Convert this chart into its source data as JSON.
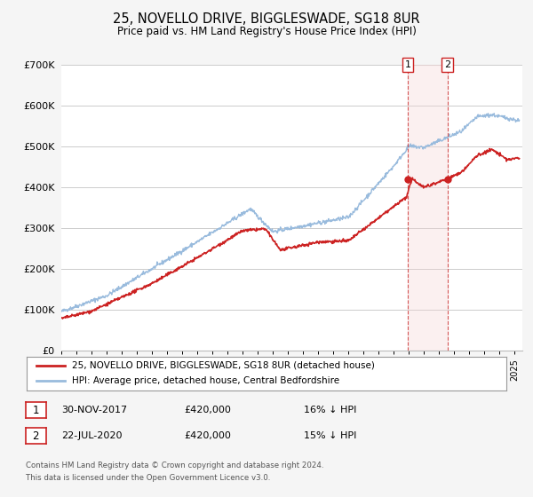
{
  "title": "25, NOVELLO DRIVE, BIGGLESWADE, SG18 8UR",
  "subtitle": "Price paid vs. HM Land Registry's House Price Index (HPI)",
  "ylim": [
    0,
    700000
  ],
  "xlim_start": 1995.0,
  "xlim_end": 2025.5,
  "yticks": [
    0,
    100000,
    200000,
    300000,
    400000,
    500000,
    600000,
    700000
  ],
  "ytick_labels": [
    "£0",
    "£100K",
    "£200K",
    "£300K",
    "£400K",
    "£500K",
    "£600K",
    "£700K"
  ],
  "background_color": "#f5f5f5",
  "plot_bg_color": "#ffffff",
  "grid_color": "#cccccc",
  "red_line_color": "#cc2222",
  "blue_line_color": "#99bbdd",
  "marker1_x": 2017.917,
  "marker1_y": 420000,
  "marker2_x": 2020.55,
  "marker2_y": 420000,
  "vline1_x": 2017.917,
  "vline2_x": 2020.55,
  "vline_color": "#cc3333",
  "vline_shade_color": "#f5d5d5",
  "legend_label_red": "25, NOVELLO DRIVE, BIGGLESWADE, SG18 8UR (detached house)",
  "legend_label_blue": "HPI: Average price, detached house, Central Bedfordshire",
  "annotation1_date": "30-NOV-2017",
  "annotation1_price": "£420,000",
  "annotation1_hpi": "16% ↓ HPI",
  "annotation2_date": "22-JUL-2020",
  "annotation2_price": "£420,000",
  "annotation2_hpi": "15% ↓ HPI",
  "footnote1": "Contains HM Land Registry data © Crown copyright and database right 2024.",
  "footnote2": "This data is licensed under the Open Government Licence v3.0."
}
